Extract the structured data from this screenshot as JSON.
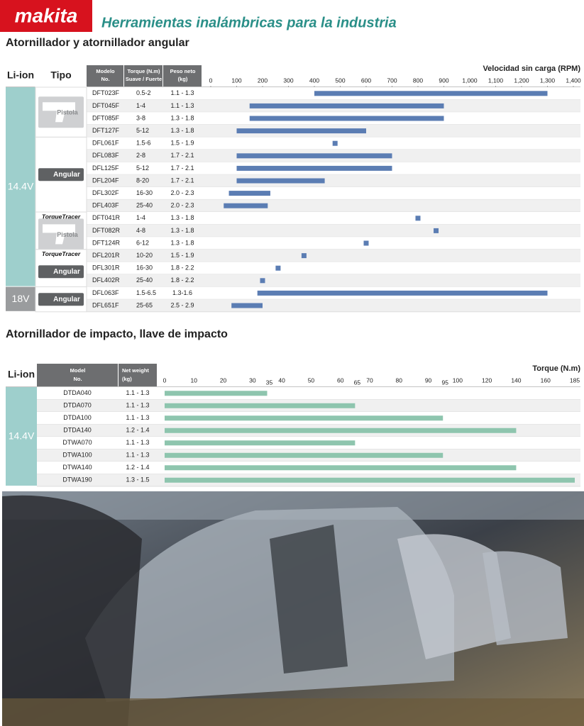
{
  "header": {
    "brand": "makita",
    "title": "Herramientas inalámbricas para la industria"
  },
  "section1": {
    "title": "Atornillador y atornillador angular",
    "columns": {
      "battery": "Li-ion",
      "type": "Tipo",
      "model": [
        "Modelo",
        "No."
      ],
      "torque": [
        "Torque (N.m)",
        "Suave / Fuerte"
      ],
      "weight": [
        "Peso neto",
        "(kg)"
      ]
    },
    "chart": {
      "type": "range-bar",
      "axis_title": "Velocidad sin carga (RPM)",
      "xlim": [
        0,
        1400
      ],
      "xticks": [
        0,
        100,
        200,
        300,
        400,
        500,
        600,
        700,
        800,
        900,
        {
          "value": 1000,
          "label": "1,000"
        },
        {
          "value": 1100,
          "label": "1,100"
        },
        {
          "value": 1200,
          "label": "1,200"
        },
        {
          "value": 1300,
          "label": "1,300"
        },
        {
          "value": 1400,
          "label": "1,400"
        }
      ],
      "color": "#5b7db3"
    },
    "groups": [
      {
        "voltage": "14.4V",
        "types": [
          {
            "label": "Pistola",
            "rows": [
              {
                "model": "DFT023F",
                "torque": "0.5-2",
                "weight": "1.1 - 1.3",
                "rpm": [
                  400,
                  1300
                ]
              },
              {
                "model": "DFT045F",
                "torque": "1-4",
                "weight": "1.1 - 1.3",
                "rpm": [
                  150,
                  900
                ]
              },
              {
                "model": "DFT085F",
                "torque": "3-8",
                "weight": "1.3 - 1.8",
                "rpm": [
                  150,
                  900
                ]
              },
              {
                "model": "DFT127F",
                "torque": "5-12",
                "weight": "1.3 - 1.8",
                "rpm": [
                  100,
                  600
                ]
              }
            ]
          },
          {
            "label": "Angular",
            "rows": [
              {
                "model": "DFL061F",
                "torque": "1.5-6",
                "weight": "1.5 - 1.9",
                "rpm": 480
              },
              {
                "model": "DFL083F",
                "torque": "2-8",
                "weight": "1.7 - 2.1",
                "rpm": [
                  100,
                  700
                ]
              },
              {
                "model": "DFL125F",
                "torque": "5-12",
                "weight": "1.7 - 2.1",
                "rpm": [
                  100,
                  700
                ]
              },
              {
                "model": "DFL204F",
                "torque": "8-20",
                "weight": "1.7 - 2.1",
                "rpm": [
                  100,
                  440
                ]
              },
              {
                "model": "DFL302F",
                "torque": "16-30",
                "weight": "2.0 - 2.3",
                "rpm": [
                  70,
                  230
                ]
              },
              {
                "model": "DFL403F",
                "torque": "25-40",
                "weight": "2.0 - 2.3",
                "rpm": [
                  50,
                  220
                ]
              }
            ]
          },
          {
            "badge": "TorqueTracer",
            "label": "Pistola",
            "rows": [
              {
                "model": "DFT041R",
                "torque": "1-4",
                "weight": "1.3 - 1.8",
                "rpm": 800
              },
              {
                "model": "DFT082R",
                "torque": "4-8",
                "weight": "1.3 - 1.8",
                "rpm": 870
              },
              {
                "model": "DFT124R",
                "torque": "6-12",
                "weight": "1.3 - 1.8",
                "rpm": 600
              }
            ]
          },
          {
            "badge": "TorqueTracer",
            "label": "Angular",
            "rows": [
              {
                "model": "DFL201R",
                "torque": "10-20",
                "weight": "1.5 - 1.9",
                "rpm": 360
              },
              {
                "model": "DFL301R",
                "torque": "16-30",
                "weight": "1.8 - 2.2",
                "rpm": 260
              },
              {
                "model": "DFL402R",
                "torque": "25-40",
                "weight": "1.8 - 2.2",
                "rpm": 200
              }
            ]
          }
        ]
      },
      {
        "voltage": "18V",
        "types": [
          {
            "label": "Angular",
            "rows": [
              {
                "model": "DFL063F",
                "torque": "1.5-6.5",
                "weight": "1.3-1.6",
                "rpm": [
                  180,
                  1300
                ]
              },
              {
                "model": "DFL651F",
                "torque": "25-65",
                "weight": "2.5 - 2.9",
                "rpm": [
                  80,
                  200
                ]
              }
            ]
          }
        ]
      }
    ]
  },
  "section2": {
    "title": "Atornillador de impacto, llave de impacto",
    "columns": {
      "battery": "Li-ion",
      "model": [
        "Model",
        "No."
      ],
      "weight": [
        "Net weight",
        "(kg)"
      ]
    },
    "chart": {
      "type": "bar",
      "axis_title": "Torque (N.m)",
      "xlim": [
        0,
        185
      ],
      "xticks": [
        0,
        10,
        20,
        30,
        40,
        50,
        60,
        70,
        80,
        90,
        100,
        120,
        140,
        160,
        185
      ],
      "extra_ticks": [
        35,
        65,
        95
      ],
      "color": "#8ec5ae"
    },
    "voltage": "14.4V",
    "rows": [
      {
        "model": "DTDA040",
        "weight": "1.1 - 1.3",
        "torque": 35
      },
      {
        "model": "DTDA070",
        "weight": "1.1 - 1.3",
        "torque": 65
      },
      {
        "model": "DTDA100",
        "weight": "1.1 - 1.3",
        "torque": 95
      },
      {
        "model": "DTDA140",
        "weight": "1.2 - 1.4",
        "torque": 140
      },
      {
        "model": "DTWA070",
        "weight": "1.1 - 1.3",
        "torque": 65
      },
      {
        "model": "DTWA100",
        "weight": "1.1 - 1.3",
        "torque": 95
      },
      {
        "model": "DTWA140",
        "weight": "1.2 - 1.4",
        "torque": 140
      },
      {
        "model": "DTWA190",
        "weight": "1.3 - 1.5",
        "torque": 185
      }
    ]
  }
}
